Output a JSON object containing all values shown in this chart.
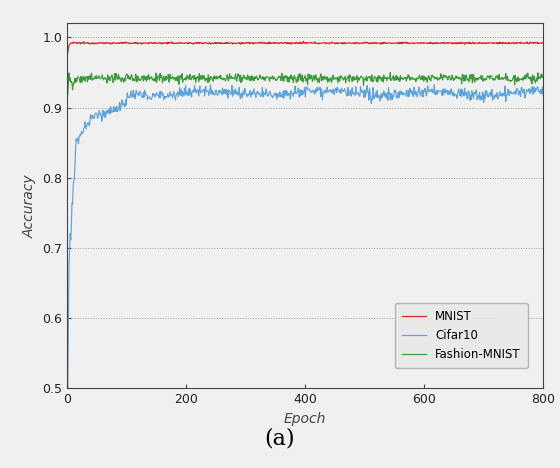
{
  "title": "(a)",
  "xlabel": "Epoch",
  "ylabel": "Accuracy",
  "xlim": [
    0,
    800
  ],
  "ylim": [
    0.5,
    1.02
  ],
  "yticks": [
    0.5,
    0.6,
    0.7,
    0.8,
    0.9,
    1.0
  ],
  "xticks": [
    0,
    200,
    400,
    600,
    800
  ],
  "total_epochs": 800,
  "colors": {
    "mnist": "#d42020",
    "cifar10": "#5ba3d9",
    "fashion": "#3a9a3a"
  },
  "legend_labels": [
    "MNIST",
    "Cifar10",
    "Fashion-MNIST"
  ],
  "grid_color": "#888888",
  "background_color": "#f0f0f0",
  "plot_bg_color": "#f0f0f0",
  "legend_fontsize": 8.5,
  "axis_label_fontsize": 10,
  "title_fontsize": 16,
  "tick_fontsize": 9,
  "linewidth": 0.85
}
